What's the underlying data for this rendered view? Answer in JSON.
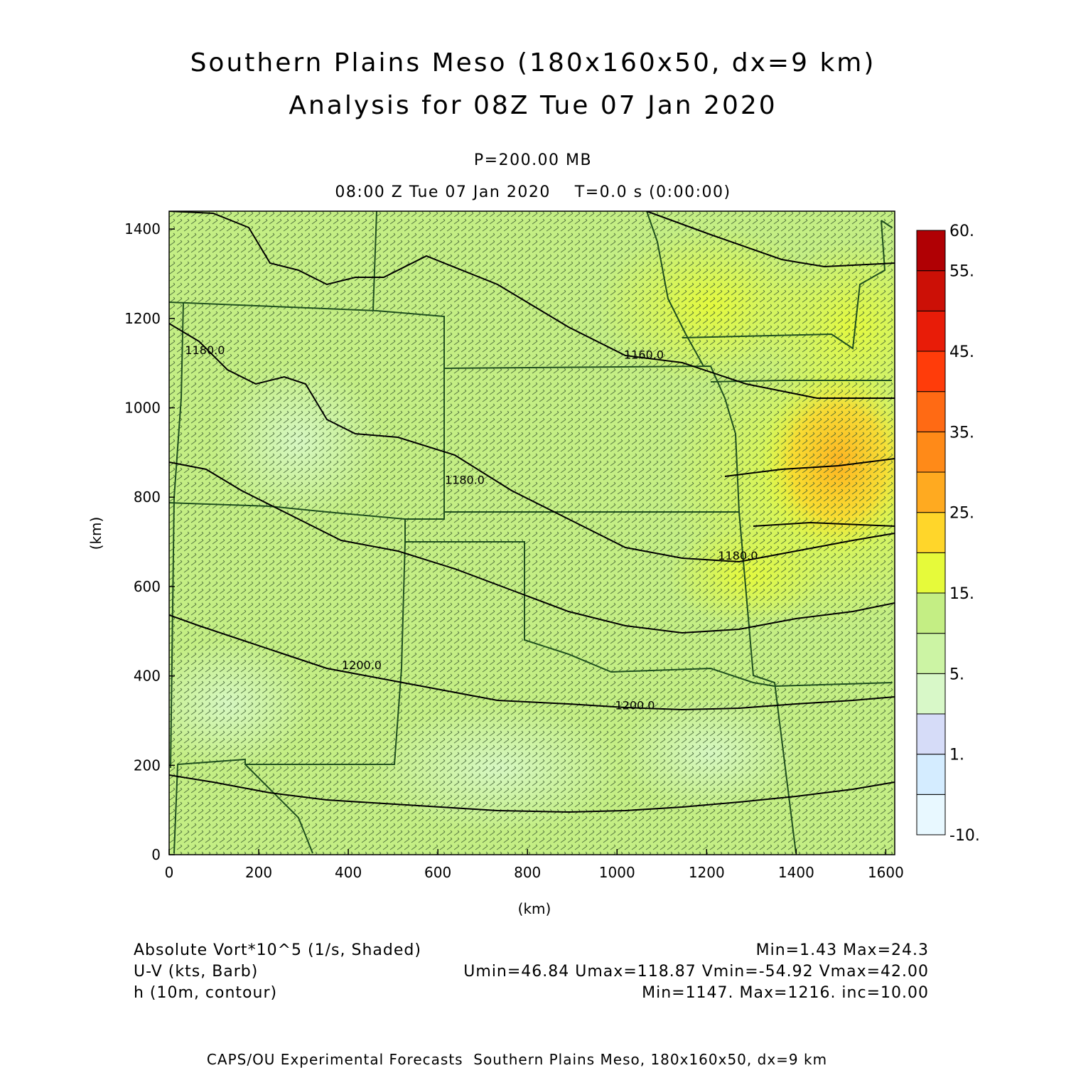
{
  "title": {
    "line1": "Southern Plains Meso (180x160x50, dx=9 km)",
    "line2": "Analysis for 08Z Tue 07 Jan 2020"
  },
  "subtitle": {
    "pressure": "P=200.00 MB",
    "time": "08:00 Z Tue 07 Jan 2020    T=0.0 s (0:00:00)"
  },
  "axes": {
    "x_label": "(km)",
    "y_label": "(km)",
    "x_range": [
      0,
      1620
    ],
    "y_range": [
      0,
      1440
    ],
    "x_ticks": [
      0,
      200,
      400,
      600,
      800,
      1000,
      1200,
      1400,
      1600
    ],
    "y_ticks": [
      0,
      200,
      400,
      600,
      800,
      1000,
      1200,
      1400
    ]
  },
  "colorbar": {
    "levels": [
      "-10.",
      "",
      "1.",
      "",
      "5.",
      "",
      "15.",
      "",
      "25.",
      "",
      "35.",
      "",
      "45.",
      "",
      "55.",
      "60."
    ],
    "label_levels": [
      "60.",
      "55.",
      "45.",
      "35.",
      "25.",
      "15.",
      "5.",
      "1.",
      "-10."
    ],
    "colors": [
      "#e8f8ff",
      "#d4ecff",
      "#d6dcf8",
      "#d8f8c8",
      "#ccf4a4",
      "#c4ee84",
      "#e6fa3a",
      "#ffd62a",
      "#ffaa20",
      "#ff8a18",
      "#ff6a14",
      "#ff3c0a",
      "#e81c08",
      "#cc1006",
      "#b00004"
    ]
  },
  "contour_labels": [
    {
      "text": "1180.0",
      "x": 80,
      "y": 1120
    },
    {
      "text": "1160.0",
      "x": 1060,
      "y": 1110
    },
    {
      "text": "1180.0",
      "x": 660,
      "y": 830
    },
    {
      "text": "1180.0",
      "x": 1270,
      "y": 660
    },
    {
      "text": "1200.0",
      "x": 430,
      "y": 415
    },
    {
      "text": "1200.0",
      "x": 1040,
      "y": 325
    }
  ],
  "legend": {
    "row1_left": "Absolute Vort*10^5 (1/s, Shaded)",
    "row1_right": "Min=1.43 Max=24.3",
    "row2_left": "U-V (kts, Barb)",
    "row2_right": "Umin=46.84 Umax=118.87 Vmin=-54.92 Vmax=42.00",
    "row3_left": "h (10m, contour)",
    "row3_right": "Min=1147. Max=1216. inc=10.00"
  },
  "footer": "CAPS/OU Experimental Forecasts  Southern Plains Meso, 180x160x50, dx=9 km"
}
